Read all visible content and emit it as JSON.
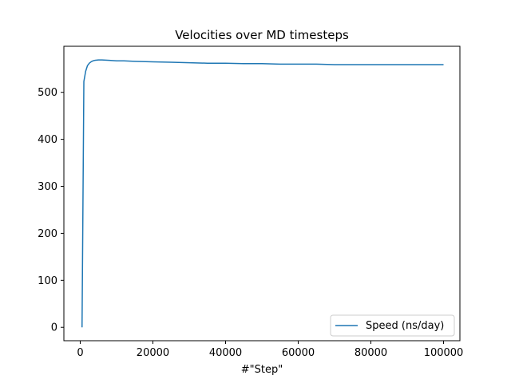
{
  "chart_data": {
    "type": "line",
    "title": "Velocities over MD timesteps",
    "xlabel": "#\"Step\"",
    "ylabel": "",
    "xlim": [
      -4500,
      104500
    ],
    "ylim": [
      -28.5,
      598
    ],
    "xticks": [
      0,
      20000,
      40000,
      60000,
      80000,
      100000
    ],
    "xtick_labels": [
      "0",
      "20000",
      "40000",
      "60000",
      "80000",
      "100000"
    ],
    "yticks": [
      0,
      100,
      200,
      300,
      400,
      500
    ],
    "ytick_labels": [
      "0",
      "100",
      "200",
      "300",
      "400",
      "500"
    ],
    "grid": false,
    "legend": {
      "placement": "lower-right"
    },
    "colors": {
      "series": "#1f77b4",
      "axes": "#000000",
      "legend_border": "#cccccc"
    },
    "series": [
      {
        "name": "Speed (ns/day)",
        "x": [
          500,
          1000,
          1500,
          2000,
          2500,
          3000,
          3500,
          4000,
          5000,
          6000,
          8000,
          10000,
          12000,
          15000,
          20000,
          25000,
          30000,
          35000,
          40000,
          45000,
          50000,
          55000,
          60000,
          65000,
          70000,
          75000,
          80000,
          85000,
          90000,
          95000,
          100000
        ],
        "y": [
          0,
          523,
          545,
          557,
          562,
          565,
          567,
          568,
          569,
          569,
          568,
          567,
          567,
          566,
          565,
          564,
          563,
          562,
          562,
          561,
          561,
          560,
          560,
          560,
          559,
          559,
          559,
          559,
          559,
          559,
          559
        ]
      }
    ]
  }
}
